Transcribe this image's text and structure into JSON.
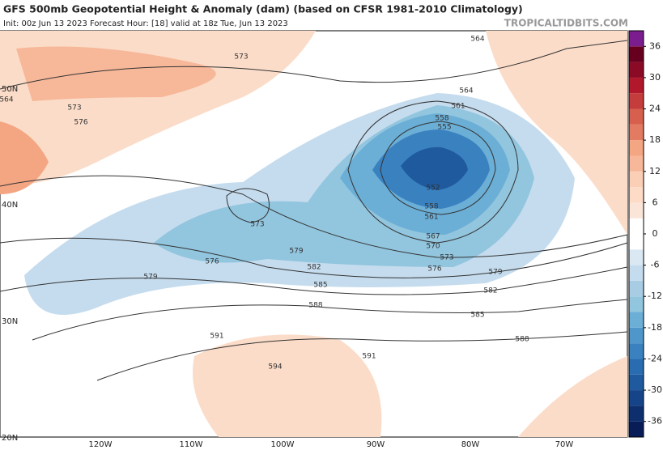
{
  "header": {
    "title": "GFS 500mb Geopotential Height & Anomaly (dam) (based on CFSR 1981-2010 Climatology)",
    "subtitle": "Init: 00z Jun 13 2023   Forecast Hour: [18]   valid at 18z Tue, Jun 13 2023",
    "watermark": "TROPICALTIDBITS.COM"
  },
  "map": {
    "lat_labels": [
      "50N",
      "40N",
      "30N",
      "20N"
    ],
    "lon_labels": [
      "120W",
      "110W",
      "100W",
      "90W",
      "80W",
      "70W"
    ],
    "contour_labels": [
      564,
      573,
      564,
      573,
      576,
      564,
      561,
      558,
      555,
      552,
      558,
      561,
      567,
      570,
      573,
      576,
      579,
      582,
      585,
      588,
      573,
      576,
      579,
      582,
      585,
      588,
      579,
      591,
      591,
      594
    ]
  },
  "colorbar": {
    "lim": [
      -39,
      39
    ],
    "ticks": [
      36,
      30,
      24,
      18,
      12,
      6,
      0,
      -6,
      -12,
      -18,
      -24,
      -30,
      -36
    ],
    "colors": [
      "#081d58",
      "#0d2f6e",
      "#164488",
      "#1f5a9e",
      "#2a6cb0",
      "#3a81c0",
      "#4f97cb",
      "#6baed6",
      "#92c5de",
      "#a8cce4",
      "#c5dcee",
      "#d9e8f3",
      "#ffffff",
      "#ffffff",
      "#fbe5d8",
      "#fddbc7",
      "#fbcfb6",
      "#f7b799",
      "#f4a582",
      "#e27b62",
      "#d6604d",
      "#c43c3c",
      "#b2182b",
      "#8b0a25",
      "#67001f",
      "#7b1d8e"
    ]
  }
}
